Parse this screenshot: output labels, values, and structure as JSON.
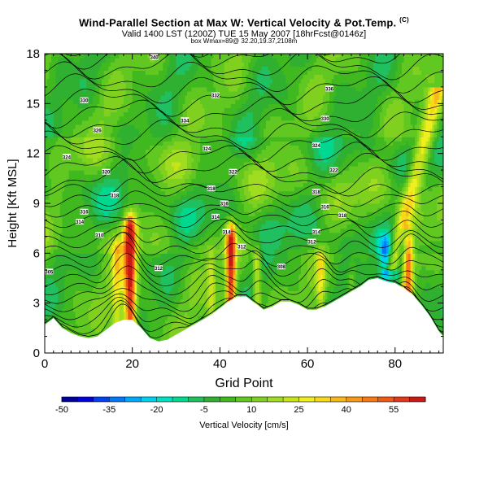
{
  "header": {
    "title": "Wind-Parallel Section at Max W: Vertical Velocity & Pot.Temp.",
    "copyright": "(C)",
    "valid_line": "Valid 1400 LST (1200Z) TUE 15 May 2007 [18hrFcst@0146z]",
    "box_line": "box Wmax=89@ 32.20,19.37,2108m"
  },
  "chart_data": {
    "type": "heatmap",
    "title": "Wind-Parallel Section at Max W: Vertical Velocity & Pot.Temp.",
    "xlabel": "Grid Point",
    "ylabel": "Height [Kft MSL]",
    "xlim": [
      0,
      91
    ],
    "ylim": [
      0,
      18
    ],
    "x_ticks": [
      0,
      20,
      40,
      60,
      80
    ],
    "y_ticks": [
      0,
      3,
      6,
      9,
      12,
      15,
      18
    ],
    "colorbar": {
      "label": "Vertical Velocity [cm/s]",
      "tick_labels": [
        "-50",
        "-35",
        "-20",
        "-5",
        "10",
        "25",
        "40",
        "55"
      ],
      "min": -50,
      "max": 60,
      "step": 5,
      "colors": [
        "#00009a",
        "#0000d8",
        "#0040f0",
        "#0078f8",
        "#00a8f8",
        "#00d0f0",
        "#00e0c0",
        "#00d890",
        "#20c060",
        "#30b030",
        "#40b820",
        "#60c820",
        "#80d020",
        "#a0dc20",
        "#c8e418",
        "#eeee20",
        "#f8d818",
        "#f8b818",
        "#f89818",
        "#f87818",
        "#f05818",
        "#e03818",
        "#c81818"
      ]
    },
    "terrain_kft": [
      [
        0,
        1.7
      ],
      [
        2,
        2.1
      ],
      [
        4,
        1.5
      ],
      [
        6,
        1.2
      ],
      [
        8,
        1.0
      ],
      [
        10,
        0.9
      ],
      [
        12,
        1.0
      ],
      [
        14,
        1.4
      ],
      [
        16,
        1.8
      ],
      [
        18,
        2.0
      ],
      [
        20,
        2.0
      ],
      [
        22,
        1.5
      ],
      [
        24,
        0.9
      ],
      [
        26,
        0.7
      ],
      [
        28,
        0.8
      ],
      [
        30,
        1.1
      ],
      [
        32,
        1.4
      ],
      [
        34,
        1.7
      ],
      [
        36,
        2.0
      ],
      [
        38,
        2.3
      ],
      [
        40,
        2.7
      ],
      [
        42,
        3.1
      ],
      [
        44,
        3.4
      ],
      [
        46,
        3.4
      ],
      [
        48,
        3.0
      ],
      [
        50,
        2.6
      ],
      [
        52,
        2.8
      ],
      [
        54,
        3.1
      ],
      [
        56,
        3.1
      ],
      [
        58,
        2.9
      ],
      [
        60,
        2.6
      ],
      [
        62,
        2.6
      ],
      [
        64,
        2.8
      ],
      [
        66,
        3.1
      ],
      [
        68,
        3.4
      ],
      [
        70,
        3.7
      ],
      [
        72,
        4.0
      ],
      [
        74,
        4.4
      ],
      [
        76,
        4.5
      ],
      [
        78,
        4.3
      ],
      [
        80,
        4.2
      ],
      [
        82,
        3.9
      ],
      [
        84,
        3.5
      ],
      [
        86,
        2.9
      ],
      [
        88,
        2.2
      ],
      [
        90,
        1.3
      ],
      [
        91,
        1.0
      ]
    ],
    "updrafts": [
      {
        "x": 19.5,
        "ztop": 7.5,
        "w": 60,
        "sx": 1.4
      },
      {
        "x": 16.5,
        "ztop": 6.0,
        "w": 22,
        "sx": 1.2
      },
      {
        "x": 42.5,
        "ztop": 7.0,
        "w": 55,
        "sx": 1.1
      },
      {
        "x": 48.5,
        "ztop": 5.5,
        "w": 25,
        "sx": 0.9
      },
      {
        "x": 38.0,
        "ztop": 5.5,
        "w": 15,
        "sx": 1.0
      },
      {
        "x": 63.0,
        "ztop": 5.5,
        "w": 18,
        "sx": 1.0
      },
      {
        "x": 70.0,
        "ztop": 4.5,
        "w": 12,
        "sx": 1.0
      },
      {
        "x": 83.0,
        "ztop": 6.5,
        "w": 40,
        "sx": 1.1
      }
    ],
    "tilted_band": {
      "x_bottom": 79,
      "x_top": 90,
      "z_bottom": 5,
      "z_top": 16,
      "w": 30
    },
    "downdraft_zone": {
      "x": 78,
      "zmin": 3.5,
      "zmax": 7.5,
      "w": -35
    },
    "isentropes_count": 32,
    "isentrope_labels": [
      {
        "value": "305",
        "x": 1,
        "z": 4.9
      },
      {
        "value": "310",
        "x": 12.5,
        "z": 7.1
      },
      {
        "value": "314",
        "x": 8,
        "z": 7.9
      },
      {
        "value": "316",
        "x": 9,
        "z": 8.5
      },
      {
        "value": "318",
        "x": 16,
        "z": 9.5
      },
      {
        "value": "320",
        "x": 14,
        "z": 10.9
      },
      {
        "value": "324",
        "x": 5,
        "z": 11.8
      },
      {
        "value": "326",
        "x": 12,
        "z": 13.4
      },
      {
        "value": "330",
        "x": 9,
        "z": 15.2
      },
      {
        "value": "340",
        "x": 25,
        "z": 17.8
      },
      {
        "value": "334",
        "x": 32,
        "z": 14.0
      },
      {
        "value": "312",
        "x": 26,
        "z": 5.1
      },
      {
        "value": "314",
        "x": 39,
        "z": 8.2
      },
      {
        "value": "316",
        "x": 41,
        "z": 9.0
      },
      {
        "value": "318",
        "x": 38,
        "z": 9.9
      },
      {
        "value": "322",
        "x": 43,
        "z": 10.9
      },
      {
        "value": "324",
        "x": 37,
        "z": 12.3
      },
      {
        "value": "332",
        "x": 39,
        "z": 15.5
      },
      {
        "value": "312",
        "x": 45,
        "z": 6.4
      },
      {
        "value": "314",
        "x": 41.5,
        "z": 7.3
      },
      {
        "value": "308",
        "x": 54,
        "z": 5.2
      },
      {
        "value": "312",
        "x": 61,
        "z": 6.7
      },
      {
        "value": "314",
        "x": 62,
        "z": 7.3
      },
      {
        "value": "316",
        "x": 64,
        "z": 8.8
      },
      {
        "value": "318",
        "x": 62,
        "z": 9.7
      },
      {
        "value": "318",
        "x": 68,
        "z": 8.3
      },
      {
        "value": "322",
        "x": 66,
        "z": 11.0
      },
      {
        "value": "324",
        "x": 62,
        "z": 12.5
      },
      {
        "value": "330",
        "x": 64,
        "z": 14.1
      },
      {
        "value": "336",
        "x": 65,
        "z": 15.9
      }
    ]
  }
}
